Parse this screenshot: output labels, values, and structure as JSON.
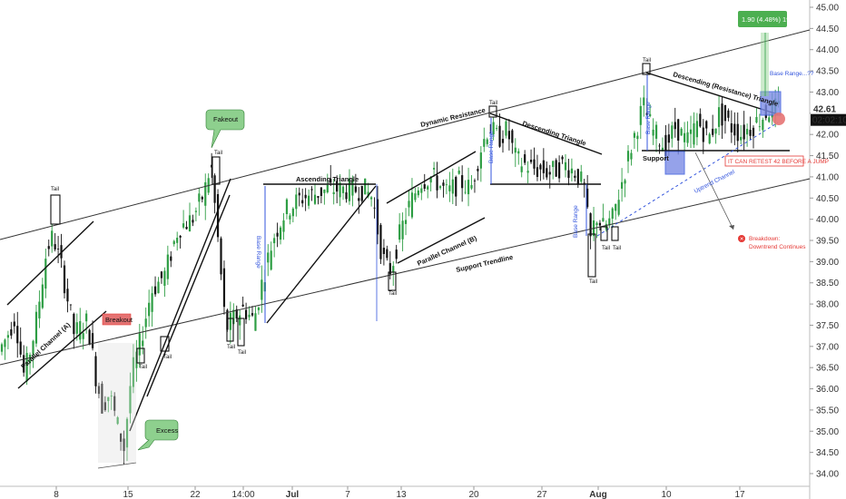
{
  "chart_data": {
    "type": "candlestick",
    "y_axis": {
      "min": 34.0,
      "max": 45.0,
      "step": 0.5,
      "side": "right"
    },
    "x_ticks": [
      "8",
      "15",
      "22",
      "14:00",
      "Jul",
      "7",
      "13",
      "20",
      "27",
      "Aug",
      "10",
      "17"
    ],
    "bold_ticks": [
      "Jul",
      "Aug"
    ],
    "price": {
      "last": "42.61",
      "countdown": "02:02:10",
      "color": "#111111"
    },
    "colors": {
      "up": "#2e9e44",
      "down": "#111111",
      "blue": "#3355dd",
      "red": "#e53935",
      "green_badge": "#4caf50",
      "callout_fill": "#8ed08e"
    },
    "annotations": {
      "fakeout": "Fakeout",
      "excess": "Excess",
      "breakout": "Breakout",
      "tail": "Tail",
      "ascending_triangle": "Ascending Triangle",
      "base_range": "Base Range",
      "parallel_channel_a": "Parallel Channel (A)",
      "parallel_channel_b": "Parallel Channel (B)",
      "support_trendline": "Support Trendline",
      "dynamic_resistance": "Dynamic Resistance",
      "descending_triangle": "Descending Triangle",
      "descending_resistance_triangle": "Descending (Resistance) Triangle",
      "support": "Support",
      "uptrend_channel": "Uptrend Channel",
      "retest": "IT CAN RETEST 42 BEFORE A JUMP",
      "breakdown_line1": "Breakdown:",
      "breakdown_line2": "Downtrend Continues",
      "base_range_q": "Base Range...??",
      "target_badge": "1.90 (4.48%) 190"
    }
  }
}
